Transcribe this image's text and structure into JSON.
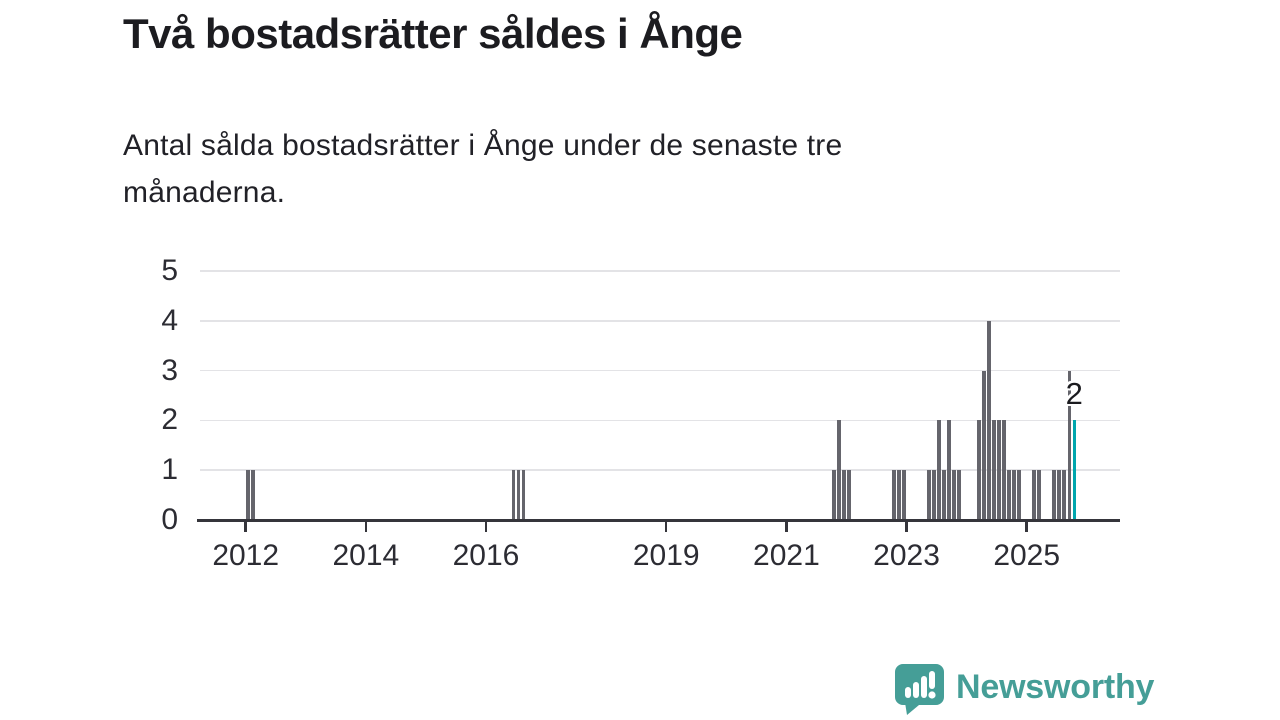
{
  "header": {
    "title": "Två bostadsrätter såldes i Ånge",
    "subtitle_lines": {
      "0": "Antal sålda bostadsrätter i Ånge under de senaste tre",
      "1": "månaderna."
    }
  },
  "chart_data": {
    "type": "bar",
    "title": "Två bostadsrätter såldes i Ånge",
    "subtitle": "Antal sålda bostadsrätter i Ånge under de senaste tre månaderna.",
    "xlabel": "",
    "ylabel": "",
    "x_axis": {
      "ticks": [
        2012,
        2014,
        2016,
        2019,
        2021,
        2023,
        2025
      ],
      "domain": [
        2011.24,
        2026.55
      ]
    },
    "y_axis": {
      "ticks": [
        0,
        1,
        2,
        3,
        4,
        5
      ],
      "domain": [
        0,
        5
      ]
    },
    "grid": true,
    "legend": "none",
    "bars": [
      {
        "date": "2012-01",
        "value": 1
      },
      {
        "date": "2012-02",
        "value": 1
      },
      {
        "date": "2016-06",
        "value": 1
      },
      {
        "date": "2016-07",
        "value": 1
      },
      {
        "date": "2016-08",
        "value": 1
      },
      {
        "date": "2021-10",
        "value": 1
      },
      {
        "date": "2021-11",
        "value": 2
      },
      {
        "date": "2021-12",
        "value": 1
      },
      {
        "date": "2022-01",
        "value": 1
      },
      {
        "date": "2022-10",
        "value": 1
      },
      {
        "date": "2022-11",
        "value": 1
      },
      {
        "date": "2022-12",
        "value": 1
      },
      {
        "date": "2023-05",
        "value": 1
      },
      {
        "date": "2023-06",
        "value": 1
      },
      {
        "date": "2023-07",
        "value": 2
      },
      {
        "date": "2023-08",
        "value": 1
      },
      {
        "date": "2023-09",
        "value": 2
      },
      {
        "date": "2023-10",
        "value": 1
      },
      {
        "date": "2023-11",
        "value": 1
      },
      {
        "date": "2024-03",
        "value": 2
      },
      {
        "date": "2024-04",
        "value": 3
      },
      {
        "date": "2024-05",
        "value": 4
      },
      {
        "date": "2024-06",
        "value": 2
      },
      {
        "date": "2024-07",
        "value": 2
      },
      {
        "date": "2024-08",
        "value": 2
      },
      {
        "date": "2024-09",
        "value": 1
      },
      {
        "date": "2024-10",
        "value": 1
      },
      {
        "date": "2024-11",
        "value": 1
      },
      {
        "date": "2025-02",
        "value": 1
      },
      {
        "date": "2025-03",
        "value": 1
      },
      {
        "date": "2025-06",
        "value": 1
      },
      {
        "date": "2025-07",
        "value": 1
      },
      {
        "date": "2025-08",
        "value": 1
      },
      {
        "date": "2025-09",
        "value": 3
      },
      {
        "date": "2025-10",
        "value": 2,
        "highlight": true
      }
    ],
    "annotation": {
      "text": "2",
      "date": "2025-10"
    },
    "colors": {
      "bar": "#65656c",
      "highlight": "#00a6ad",
      "grid": "#e3e3e6",
      "axis": "#35353b",
      "label": "#2c2c33"
    }
  },
  "footer": {
    "brand": "Newsworthy",
    "logo_icon": "newsworthy-pin-barchart-icon",
    "brand_color": "#459e97"
  }
}
